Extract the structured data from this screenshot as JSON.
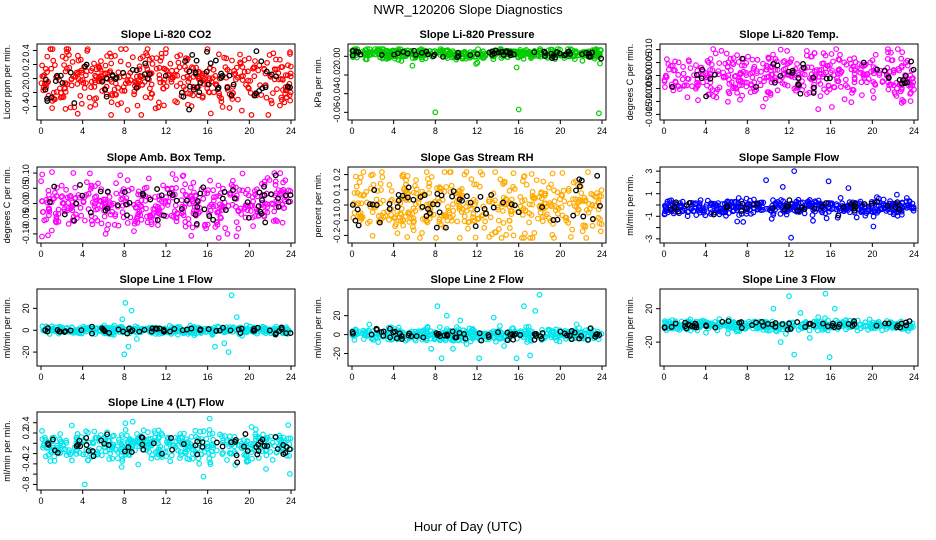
{
  "figure": {
    "title": "NWR_120206  Slope Diagnostics",
    "xlabel": "Hour of Day (UTC)"
  },
  "chart_data": [
    {
      "type": "scatter",
      "title": "Slope Li-820 CO2",
      "ylabel": "Licor ppm per min.",
      "xlim": [
        0,
        24
      ],
      "ylim": [
        -0.55,
        0.45
      ],
      "xticks": [
        0,
        4,
        8,
        12,
        16,
        20,
        24
      ],
      "yticks": [
        -0.4,
        -0.2,
        0.0,
        0.2,
        0.4
      ],
      "ytick_labels": [
        "-0.4",
        "-0.2",
        "0.0",
        "0.2",
        "0.4"
      ],
      "color": "#ff0000",
      "spread": 0.2,
      "outliers": [
        [
          2.5,
          0.38
        ],
        [
          8.3,
          -0.45
        ],
        [
          12.0,
          0.42
        ],
        [
          16.3,
          -0.5
        ],
        [
          18.1,
          -0.42
        ],
        [
          23.9,
          0.35
        ]
      ],
      "black_points": 70
    },
    {
      "type": "scatter",
      "title": "Slope Li-820 Pressure",
      "ylabel": "kPa per min.",
      "xlim": [
        0,
        24
      ],
      "ylim": [
        -0.065,
        0.01
      ],
      "xticks": [
        0,
        4,
        8,
        12,
        16,
        20,
        24
      ],
      "yticks": [
        -0.06,
        -0.04,
        -0.02,
        0.0
      ],
      "ytick_labels": [
        "-0.06",
        "-0.04",
        "-0.02",
        "0.00"
      ],
      "color": "#00cc00",
      "spread": 0.003,
      "outliers": [
        [
          8.0,
          -0.06
        ],
        [
          16.0,
          -0.057
        ],
        [
          23.7,
          -0.061
        ],
        [
          5.8,
          -0.01
        ],
        [
          11.9,
          -0.008
        ],
        [
          15.8,
          -0.012
        ]
      ],
      "black_points": 60
    },
    {
      "type": "scatter",
      "title": "Slope Li-820 Temp.",
      "ylabel": "degrees C per min.",
      "xlim": [
        0,
        24
      ],
      "ylim": [
        -0.016,
        0.011
      ],
      "xticks": [
        0,
        4,
        8,
        12,
        16,
        20,
        24
      ],
      "yticks": [
        -0.015,
        -0.01,
        -0.005,
        0.0,
        0.005,
        0.01
      ],
      "ytick_labels": [
        "-0.015",
        "-0.010",
        "-0.005",
        "0.000",
        "0.005",
        "0.010"
      ],
      "color": "#ff00ff",
      "spread": 0.0045,
      "outliers": [
        [
          9.5,
          -0.012
        ],
        [
          11.2,
          0.01
        ],
        [
          14.8,
          -0.013
        ],
        [
          21.5,
          0.009
        ],
        [
          23.0,
          -0.01
        ]
      ],
      "black_points": 40
    },
    {
      "type": "scatter",
      "title": "Slope Amb. Box Temp.",
      "ylabel": "degrees C per min.",
      "xlim": [
        0,
        24
      ],
      "ylim": [
        -0.12,
        0.11
      ],
      "xticks": [
        0,
        4,
        8,
        12,
        16,
        20,
        24
      ],
      "yticks": [
        -0.1,
        -0.05,
        0.0,
        0.05,
        0.1
      ],
      "ytick_labels": [
        "-0.10",
        "-0.05",
        "0.00",
        "0.05",
        "0.10"
      ],
      "color": "#ff00ff",
      "spread": 0.045,
      "outliers": [
        [
          3.1,
          0.1
        ],
        [
          6.2,
          -0.1
        ],
        [
          13.6,
          0.09
        ],
        [
          17.9,
          -0.1
        ],
        [
          22.4,
          0.1
        ]
      ],
      "black_points": 60
    },
    {
      "type": "scatter",
      "title": "Slope Gas Stream RH",
      "ylabel": "percent per min.",
      "xlim": [
        0,
        24
      ],
      "ylim": [
        -0.23,
        0.23
      ],
      "xticks": [
        0,
        4,
        8,
        12,
        16,
        20,
        24
      ],
      "yticks": [
        -0.2,
        -0.1,
        0.0,
        0.1,
        0.2
      ],
      "ytick_labels": [
        "-0.2",
        "-0.1",
        "0.0",
        "0.1",
        "0.2"
      ],
      "color": "#ffaa00",
      "spread": 0.1,
      "outliers": [
        [
          2.0,
          0.2
        ],
        [
          5.3,
          -0.21
        ],
        [
          10.8,
          0.2
        ],
        [
          15.5,
          -0.2
        ],
        [
          20.2,
          0.21
        ]
      ],
      "black_points": 60
    },
    {
      "type": "scatter",
      "title": "Slope Sample Flow",
      "ylabel": "ml/min per min.",
      "xlim": [
        0,
        24
      ],
      "ylim": [
        -3.1,
        3.1
      ],
      "xticks": [
        0,
        4,
        8,
        12,
        16,
        20,
        24
      ],
      "yticks": [
        -3,
        -2,
        -1,
        0,
        1,
        2,
        3
      ],
      "ytick_labels": [
        "-3",
        "-1",
        "1",
        "3"
      ],
      "ytick_label_values": [
        -3,
        -1,
        1,
        3
      ],
      "color": "#0000ff",
      "spread": 0.35,
      "outliers": [
        [
          9.8,
          2.2
        ],
        [
          11.4,
          1.6
        ],
        [
          12.2,
          -2.9
        ],
        [
          12.5,
          3.0
        ],
        [
          14.3,
          -1.4
        ],
        [
          15.8,
          2.1
        ],
        [
          17.7,
          1.5
        ],
        [
          20.1,
          -1.9
        ],
        [
          7.6,
          -1.5
        ],
        [
          18.5,
          -1.1
        ]
      ],
      "black_points": 40
    },
    {
      "type": "scatter",
      "title": "Slope Line 1 Flow",
      "ylabel": "ml/min per min.",
      "xlim": [
        0,
        24
      ],
      "ylim": [
        -30,
        35
      ],
      "xticks": [
        0,
        4,
        8,
        12,
        16,
        20,
        24
      ],
      "yticks": [
        -20,
        0,
        20
      ],
      "ytick_labels": [
        "-20",
        "0",
        "20"
      ],
      "color": "#00e5ee",
      "spread": 1.8,
      "outliers": [
        [
          8.1,
          25
        ],
        [
          8.4,
          -15
        ],
        [
          8.0,
          -22
        ],
        [
          8.7,
          18
        ],
        [
          9.2,
          -8
        ],
        [
          7.8,
          10
        ],
        [
          17.6,
          -12
        ],
        [
          18.3,
          32
        ],
        [
          18.0,
          -20
        ],
        [
          18.8,
          12
        ],
        [
          19.3,
          -5
        ],
        [
          16.7,
          -15
        ]
      ],
      "black_points": 60
    },
    {
      "type": "scatter",
      "title": "Slope Line 2 Flow",
      "ylabel": "ml/min per min.",
      "xlim": [
        0,
        24
      ],
      "ylim": [
        -30,
        45
      ],
      "xticks": [
        0,
        4,
        8,
        12,
        16,
        20,
        24
      ],
      "yticks": [
        -20,
        0,
        20
      ],
      "ytick_labels": [
        "-20",
        "0",
        "20"
      ],
      "color": "#00e5ee",
      "spread": 3.5,
      "outliers": [
        [
          8.2,
          30
        ],
        [
          8.6,
          -25
        ],
        [
          9.1,
          20
        ],
        [
          9.7,
          -15
        ],
        [
          10.4,
          15
        ],
        [
          11.0,
          -10
        ],
        [
          13.6,
          18
        ],
        [
          14.6,
          -12
        ],
        [
          16.5,
          30
        ],
        [
          17.1,
          -22
        ],
        [
          18.0,
          42
        ],
        [
          17.6,
          25
        ],
        [
          15.8,
          -25
        ],
        [
          7.6,
          -15
        ],
        [
          12.2,
          -25
        ]
      ],
      "black_points": 70
    },
    {
      "type": "scatter",
      "title": "Slope Line 3 Flow",
      "ylabel": "ml/min per min.",
      "xlim": [
        0,
        24
      ],
      "ylim": [
        -45,
        40
      ],
      "xticks": [
        0,
        4,
        8,
        12,
        16,
        20,
        24
      ],
      "yticks": [
        -20,
        20
      ],
      "ytick_labels": [
        "-20",
        "20"
      ],
      "color": "#00e5ee",
      "spread": 3.0,
      "outliers": [
        [
          10.5,
          20
        ],
        [
          11.2,
          -20
        ],
        [
          12.0,
          35
        ],
        [
          12.5,
          -35
        ],
        [
          13.1,
          15
        ],
        [
          14.0,
          -15
        ],
        [
          15.5,
          38
        ],
        [
          15.9,
          -38
        ],
        [
          16.4,
          20
        ],
        [
          11.7,
          -10
        ],
        [
          14.8,
          10
        ]
      ],
      "black_points": 60
    },
    {
      "type": "scatter",
      "title": "Slope Line 4 (LT) Flow",
      "ylabel": "ml/min per min.",
      "xlim": [
        0,
        24
      ],
      "ylim": [
        -0.85,
        0.55
      ],
      "xticks": [
        0,
        4,
        8,
        12,
        16,
        20,
        24
      ],
      "yticks": [
        -0.8,
        -0.6,
        -0.4,
        -0.2,
        0.0,
        0.2,
        0.4
      ],
      "ytick_labels": [
        "-0.8",
        "-0.4",
        "-0.2",
        "0.2",
        "0.4"
      ],
      "ytick_label_values": [
        -0.8,
        -0.4,
        -0.2,
        0.2,
        0.4
      ],
      "color": "#00e5ee",
      "spread": 0.15,
      "outliers": [
        [
          4.2,
          -0.8
        ],
        [
          15.6,
          -0.65
        ],
        [
          16.2,
          0.48
        ],
        [
          8.8,
          0.42
        ],
        [
          21.6,
          -0.5
        ]
      ],
      "black_points": 60
    }
  ]
}
